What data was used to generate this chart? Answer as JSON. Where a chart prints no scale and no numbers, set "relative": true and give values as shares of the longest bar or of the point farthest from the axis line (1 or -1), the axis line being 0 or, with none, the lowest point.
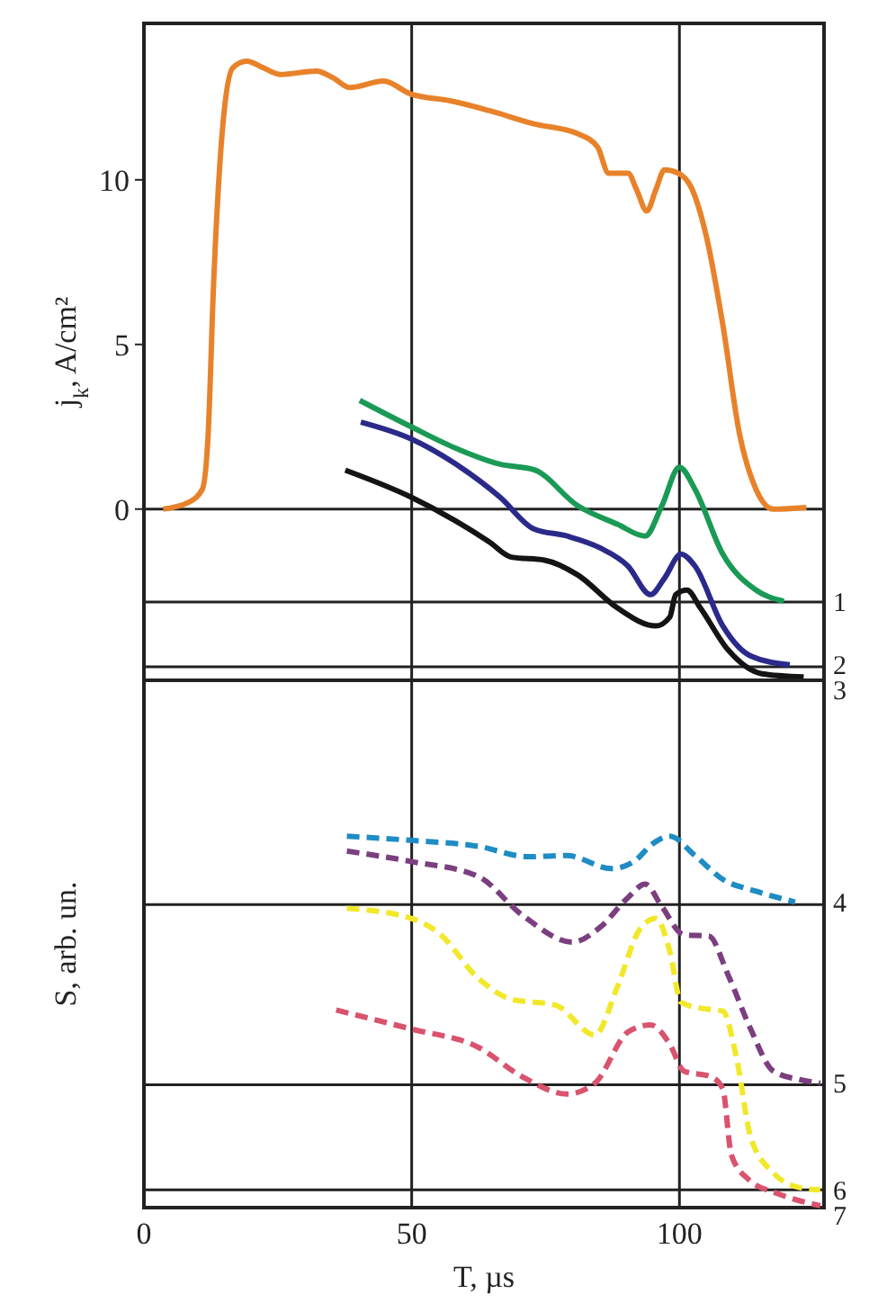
{
  "chart_data": [
    {
      "type": "line",
      "ylabel": "j$_{k}$, A/cm²",
      "xlim": [
        0,
        127
      ],
      "ylim": [
        -5.2,
        14.75
      ],
      "xticks": [
        0,
        50,
        100
      ],
      "yticks": [
        0,
        5,
        10
      ],
      "tick_labels": "y",
      "grid": "x",
      "line_style": "solid",
      "ref_lines": [
        {
          "axis": "y",
          "value": 0
        },
        {
          "axis": "y",
          "value": -2.82
        },
        {
          "axis": "y",
          "value": -4.79
        }
      ],
      "series": [
        {
          "color": "#e8822a",
          "x": [
            3.6,
            8.3,
            10.9,
            12,
            13,
            14.6,
            16.6,
            19.2,
            22.3,
            25.5,
            32.2,
            35.3,
            38.5,
            44.7,
            49.9,
            57.2,
            64.5,
            72.8,
            81,
            84.7,
            86.8,
            90.4,
            92,
            93.9,
            95.6,
            97.2,
            99.8,
            102.4,
            105,
            108.1,
            111.2,
            114.3,
            117.5,
            123.7
          ],
          "values": [
            0,
            0.2,
            0.6,
            2.3,
            6.8,
            11.4,
            13.4,
            13.6,
            13.4,
            13.2,
            13.3,
            13.1,
            12.8,
            13,
            12.6,
            12.4,
            12.1,
            11.7,
            11.4,
            11,
            10.2,
            10.2,
            9.7,
            9.05,
            9.7,
            10.3,
            10.2,
            9.7,
            8.3,
            5.6,
            2.3,
            0.6,
            0,
            0.05
          ]
        },
        {
          "name": "1",
          "color": "#1a9a55",
          "x": [
            40.3,
            49.9,
            58.2,
            66.5,
            72.8,
            81,
            88.4,
            93.6,
            96.7,
            100,
            102.9,
            108.1,
            114.3,
            119.5
          ],
          "values": [
            3.3,
            2.5,
            1.85,
            1.36,
            1.2,
            0.1,
            -0.46,
            -0.82,
            0.09,
            1.27,
            0.6,
            -1.37,
            -2.46,
            -2.8
          ]
        },
        {
          "name": "2",
          "color": "#2b2a8a",
          "x": [
            40.5,
            49.9,
            58.2,
            66.5,
            72.8,
            79,
            85.2,
            90.4,
            94.6,
            97.2,
            100.3,
            102.9,
            108.1,
            113.3,
            120.6
          ],
          "values": [
            2.64,
            2.13,
            1.37,
            0.36,
            -0.6,
            -0.82,
            -1.18,
            -1.73,
            -2.6,
            -2.1,
            -1.37,
            -1.73,
            -3.55,
            -4.46,
            -4.73
          ]
        },
        {
          "name": "3",
          "color": "#141414",
          "x": [
            37.6,
            49.9,
            58.2,
            64.5,
            68.6,
            74.8,
            81,
            88.4,
            95.6,
            98.2,
            99.3,
            101.4,
            103.9,
            109.1,
            115.4,
            123.2
          ],
          "values": [
            1.18,
            0.36,
            -0.36,
            -1,
            -1.46,
            -1.55,
            -2,
            -3,
            -3.55,
            -3.28,
            -2.6,
            -2.46,
            -3,
            -4.28,
            -5,
            -5.1
          ]
        }
      ]
    },
    {
      "type": "line",
      "ylabel": "S, arb. un.",
      "xlabel": "T, µs",
      "relative": true,
      "xlim": [
        0,
        127
      ],
      "xticks": [
        0,
        50,
        100
      ],
      "tick_labels": "x",
      "grid": "x",
      "line_style": "dashed",
      "ref_lines": [
        {
          "axis": "y",
          "value": 0.816
        },
        {
          "axis": "y",
          "value": 0.331
        },
        {
          "axis": "y",
          "value": 0.048
        }
      ],
      "series": [
        {
          "name": "4",
          "color": "#1f8cc4",
          "x": [
            37.9,
            49.9,
            62.4,
            71.7,
            79,
            87.3,
            91.5,
            95.1,
            98.2,
            102.9,
            108.1,
            114.3,
            121.6
          ],
          "values": [
            1,
            0.989,
            0.973,
            0.945,
            0.948,
            0.913,
            0.932,
            0.981,
            1,
            0.948,
            0.884,
            0.852,
            0.823
          ]
        },
        {
          "name": "5",
          "color": "#7b3f7f",
          "x": [
            37.9,
            49.9,
            62.4,
            70.7,
            80,
            85.2,
            90.4,
            93.6,
            96.7,
            100.8,
            105.5,
            109.1,
            113.3,
            117.5,
            122.7,
            126.3
          ],
          "values": [
            0.96,
            0.932,
            0.892,
            0.787,
            0.715,
            0.755,
            0.835,
            0.871,
            0.811,
            0.735,
            0.731,
            0.626,
            0.481,
            0.368,
            0.344,
            0.335
          ]
        },
        {
          "name": "6",
          "color": "#f2e82a",
          "x": [
            37.9,
            49.9,
            55.1,
            62.4,
            68.6,
            76.9,
            84.2,
            88.4,
            92.5,
            95.6,
            98.2,
            100.3,
            104,
            108.1,
            110.7,
            113.3,
            117.5,
            122.7,
            126.3
          ],
          "values": [
            0.806,
            0.779,
            0.739,
            0.618,
            0.561,
            0.545,
            0.465,
            0.594,
            0.747,
            0.779,
            0.69,
            0.553,
            0.537,
            0.529,
            0.4,
            0.19,
            0.094,
            0.053,
            0.048
          ]
        },
        {
          "name": "7",
          "color": "#d9536e",
          "x": [
            35.9,
            49.9,
            62.4,
            70.7,
            79,
            84.2,
            90.4,
            94.6,
            98.2,
            100.8,
            106,
            108.1,
            109.7,
            112.8,
            118.5,
            126.3
          ],
          "values": [
            0.532,
            0.481,
            0.432,
            0.352,
            0.306,
            0.335,
            0.473,
            0.492,
            0.44,
            0.368,
            0.352,
            0.319,
            0.142,
            0.077,
            0.037,
            0.005
          ]
        }
      ]
    }
  ]
}
